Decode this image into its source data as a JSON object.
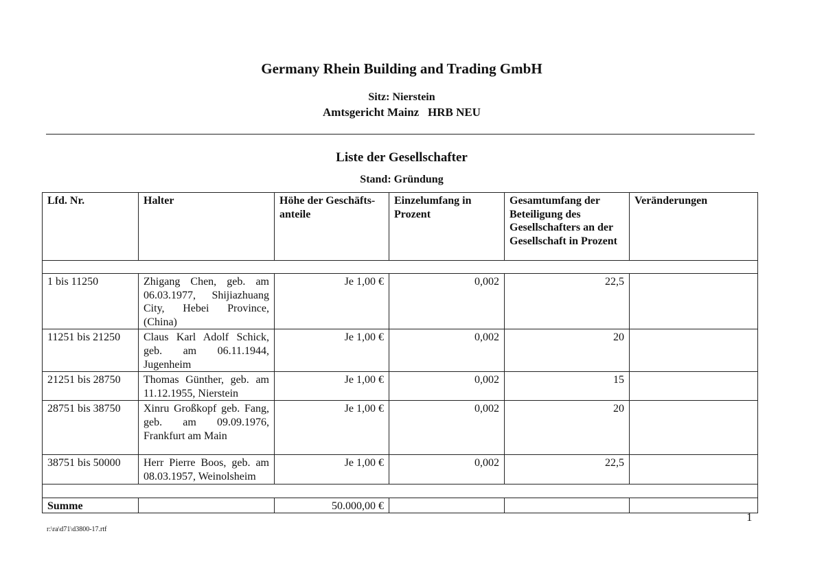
{
  "header": {
    "title": "Germany Rhein Building and Trading GmbH",
    "seat": "Sitz: Nierstein",
    "court": "Amtsgericht Mainz   HRB NEU"
  },
  "section": {
    "title": "Liste der Gesellschafter",
    "status": "Stand: Gründung"
  },
  "table": {
    "columns": [
      "Lfd. Nr.",
      "Halter",
      "Höhe der Geschäfts-anteile",
      "Einzelumfang in Prozent",
      "Gesamtumfang der Beteiligung des Gesellschafters an der Gesellschaft in Prozent",
      "Veränderungen"
    ],
    "rows": [
      {
        "nr": "1 bis 11250",
        "halter": "Zhigang Chen, geb. am 06.03.1977, Shijiazhuang City, Hebei Province, (China)",
        "hoehe": "Je 1,00 €",
        "einzel": "0,002",
        "gesamt": "22,5",
        "veraenderungen": ""
      },
      {
        "nr": "11251 bis 21250",
        "halter": "Claus Karl Adolf Schick, geb. am 06.11.1944, Jugenheim",
        "hoehe": "Je 1,00 €",
        "einzel": "0,002",
        "gesamt": "20",
        "veraenderungen": ""
      },
      {
        "nr": "21251 bis 28750",
        "halter": "Thomas Günther, geb. am 11.12.1955, Nierstein",
        "hoehe": "Je 1,00 €",
        "einzel": "0,002",
        "gesamt": "15",
        "veraenderungen": ""
      },
      {
        "nr": "28751 bis 38750",
        "halter": "Xinru Großkopf geb. Fang, geb. am 09.09.1976, Frankfurt am Main",
        "hoehe": "Je 1,00 €",
        "einzel": "0,002",
        "gesamt": "20",
        "veraenderungen": ""
      },
      {
        "nr": "38751 bis 50000",
        "halter": "Herr Pierre Boos, geb. am 08.03.1957, Weinolsheim",
        "hoehe": "Je 1,00 €",
        "einzel": "0,002",
        "gesamt": "22,5",
        "veraenderungen": ""
      }
    ],
    "sum": {
      "label": "Summe",
      "value": "50.000,00 €"
    }
  },
  "footer": {
    "page": "1",
    "file": "r:\\ra\\d71\\d3800-17.rtf"
  }
}
